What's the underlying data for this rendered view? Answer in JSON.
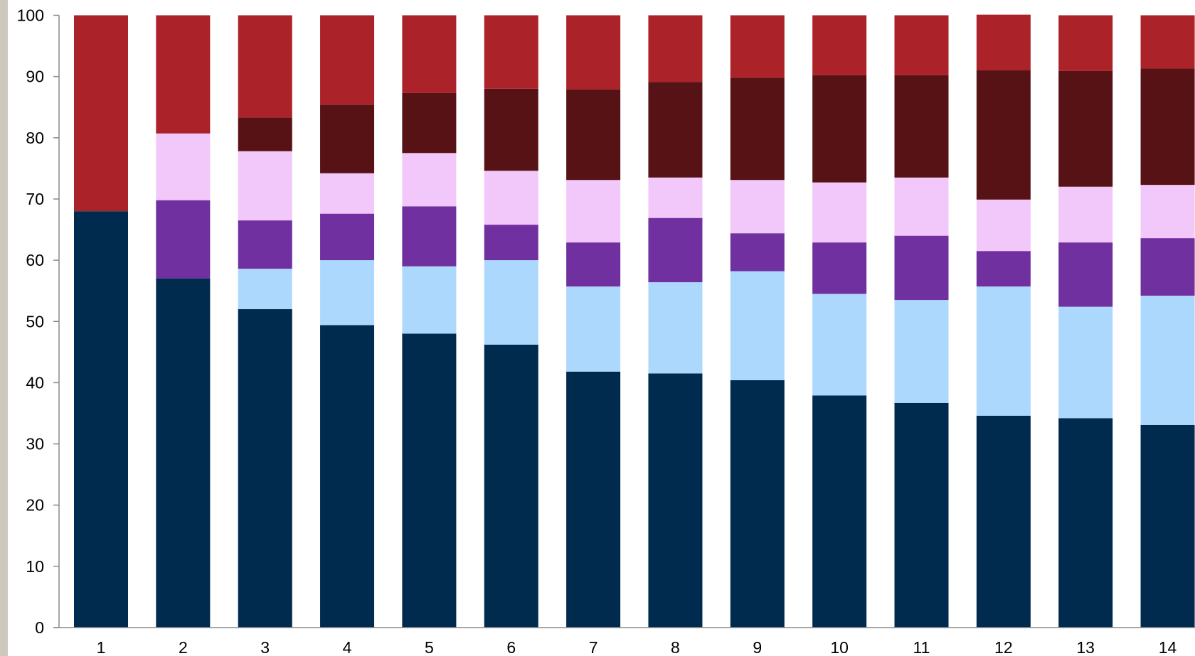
{
  "frame": {
    "left_strip_color": "#cdc9bd"
  },
  "chart_data": {
    "type": "bar",
    "stacked": true,
    "title": "",
    "xlabel": "",
    "ylabel": "",
    "ylim": [
      0,
      100
    ],
    "yticks": [
      0,
      10,
      20,
      30,
      40,
      50,
      60,
      70,
      80,
      90,
      100
    ],
    "grid": false,
    "legend": "none",
    "categories": [
      "1",
      "2",
      "3",
      "4",
      "5",
      "6",
      "7",
      "8",
      "9",
      "10",
      "11",
      "12",
      "13",
      "14"
    ],
    "series": [
      {
        "color": "#002a4e",
        "values": [
          68.0,
          57.0,
          52.0,
          49.4,
          48.0,
          46.2,
          41.8,
          41.5,
          40.4,
          37.9,
          36.7,
          34.6,
          34.2,
          33.1
        ]
      },
      {
        "color": "#add8fd",
        "values": [
          0,
          0,
          6.6,
          10.6,
          11.0,
          13.8,
          13.9,
          14.9,
          17.8,
          16.6,
          16.8,
          21.1,
          18.2,
          21.1
        ]
      },
      {
        "color": "#7030a0",
        "values": [
          0,
          12.8,
          7.9,
          7.6,
          9.8,
          5.8,
          7.2,
          10.5,
          6.2,
          8.4,
          10.5,
          5.8,
          10.5,
          9.4
        ]
      },
      {
        "color": "#f2c8fa",
        "values": [
          0,
          10.9,
          11.3,
          6.6,
          8.7,
          8.8,
          10.2,
          6.6,
          8.7,
          9.8,
          9.5,
          8.4,
          9.1,
          8.7
        ]
      },
      {
        "color": "#561214",
        "values": [
          0,
          0,
          5.5,
          11.2,
          9.8,
          13.4,
          14.8,
          15.6,
          16.7,
          17.5,
          16.7,
          21.1,
          18.9,
          19.0
        ]
      },
      {
        "color": "#ab2229",
        "values": [
          32.0,
          19.3,
          16.7,
          14.6,
          12.7,
          12.0,
          12.1,
          10.9,
          10.2,
          9.8,
          9.8,
          9.1,
          9.1,
          8.7
        ]
      }
    ]
  }
}
